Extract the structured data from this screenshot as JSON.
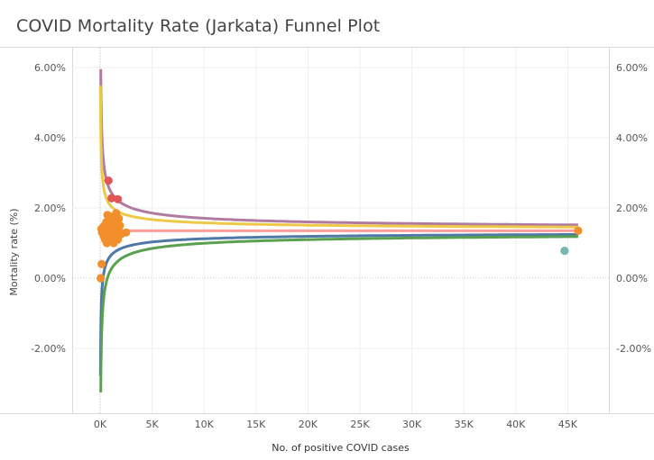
{
  "title": "COVID Mortality Rate (Jarkata) Funnel Plot",
  "chart_data": {
    "type": "scatter",
    "title": "COVID Mortality Rate (Jarkata) Funnel Plot",
    "xlabel": "No. of positive COVID cases",
    "ylabel": "Mortality rate (%)",
    "xlim": [
      -2500,
      48000
    ],
    "ylim": [
      -4.0,
      6.5
    ],
    "x_ticks": [
      0,
      5000,
      10000,
      15000,
      20000,
      25000,
      30000,
      35000,
      40000,
      45000
    ],
    "x_tick_labels": [
      "0K",
      "5K",
      "10K",
      "15K",
      "20K",
      "25K",
      "30K",
      "35K",
      "40K",
      "45K"
    ],
    "y_ticks": [
      -2,
      0,
      2,
      4,
      6
    ],
    "y_tick_labels": [
      "-2.00%",
      "0.00%",
      "2.00%",
      "4.00%",
      "6.00%"
    ],
    "right_axis_tick_labels": [
      "-2.00%",
      "0.00%",
      "2.00%",
      "4.00%",
      "6.00%"
    ],
    "grid": true,
    "mean_rate": 1.35,
    "line_colors": {
      "upper_99": "#b07aa1",
      "upper_95": "#edc948",
      "mean": "#ff9d9a",
      "lower_95": "#4e79a7",
      "lower_99": "#59a14f"
    },
    "point_colors": {
      "within_limits": "#f28e2b",
      "above_limits": "#e15759",
      "below_limits": "#76b7b2"
    },
    "series": [
      {
        "group": "within_limits",
        "points": [
          [
            50,
            0.0
          ],
          [
            150,
            0.4
          ],
          [
            120,
            1.4
          ],
          [
            180,
            1.3
          ],
          [
            300,
            1.45
          ],
          [
            350,
            1.2
          ],
          [
            420,
            1.5
          ],
          [
            480,
            1.1
          ],
          [
            520,
            1.35
          ],
          [
            600,
            1.6
          ],
          [
            650,
            1.0
          ],
          [
            700,
            1.8
          ],
          [
            750,
            1.25
          ],
          [
            800,
            1.5
          ],
          [
            850,
            1.7
          ],
          [
            900,
            1.2
          ],
          [
            950,
            1.4
          ],
          [
            1000,
            1.55
          ],
          [
            1050,
            1.3
          ],
          [
            1100,
            1.75
          ],
          [
            1150,
            1.15
          ],
          [
            1200,
            1.45
          ],
          [
            1250,
            1.6
          ],
          [
            1300,
            1.0
          ],
          [
            1350,
            1.35
          ],
          [
            1400,
            1.7
          ],
          [
            1450,
            1.25
          ],
          [
            1500,
            1.5
          ],
          [
            1550,
            1.85
          ],
          [
            1600,
            1.3
          ],
          [
            1650,
            1.6
          ],
          [
            1700,
            1.1
          ],
          [
            1750,
            1.4
          ],
          [
            1800,
            1.7
          ],
          [
            1900,
            1.5
          ],
          [
            2000,
            1.25
          ],
          [
            2500,
            1.3
          ],
          [
            46000,
            1.35
          ]
        ]
      },
      {
        "group": "above_limits",
        "points": [
          [
            800,
            2.78
          ],
          [
            1100,
            2.28
          ],
          [
            1700,
            2.25
          ]
        ]
      },
      {
        "group": "below_limits",
        "points": [
          [
            44700,
            0.78
          ]
        ]
      }
    ]
  }
}
